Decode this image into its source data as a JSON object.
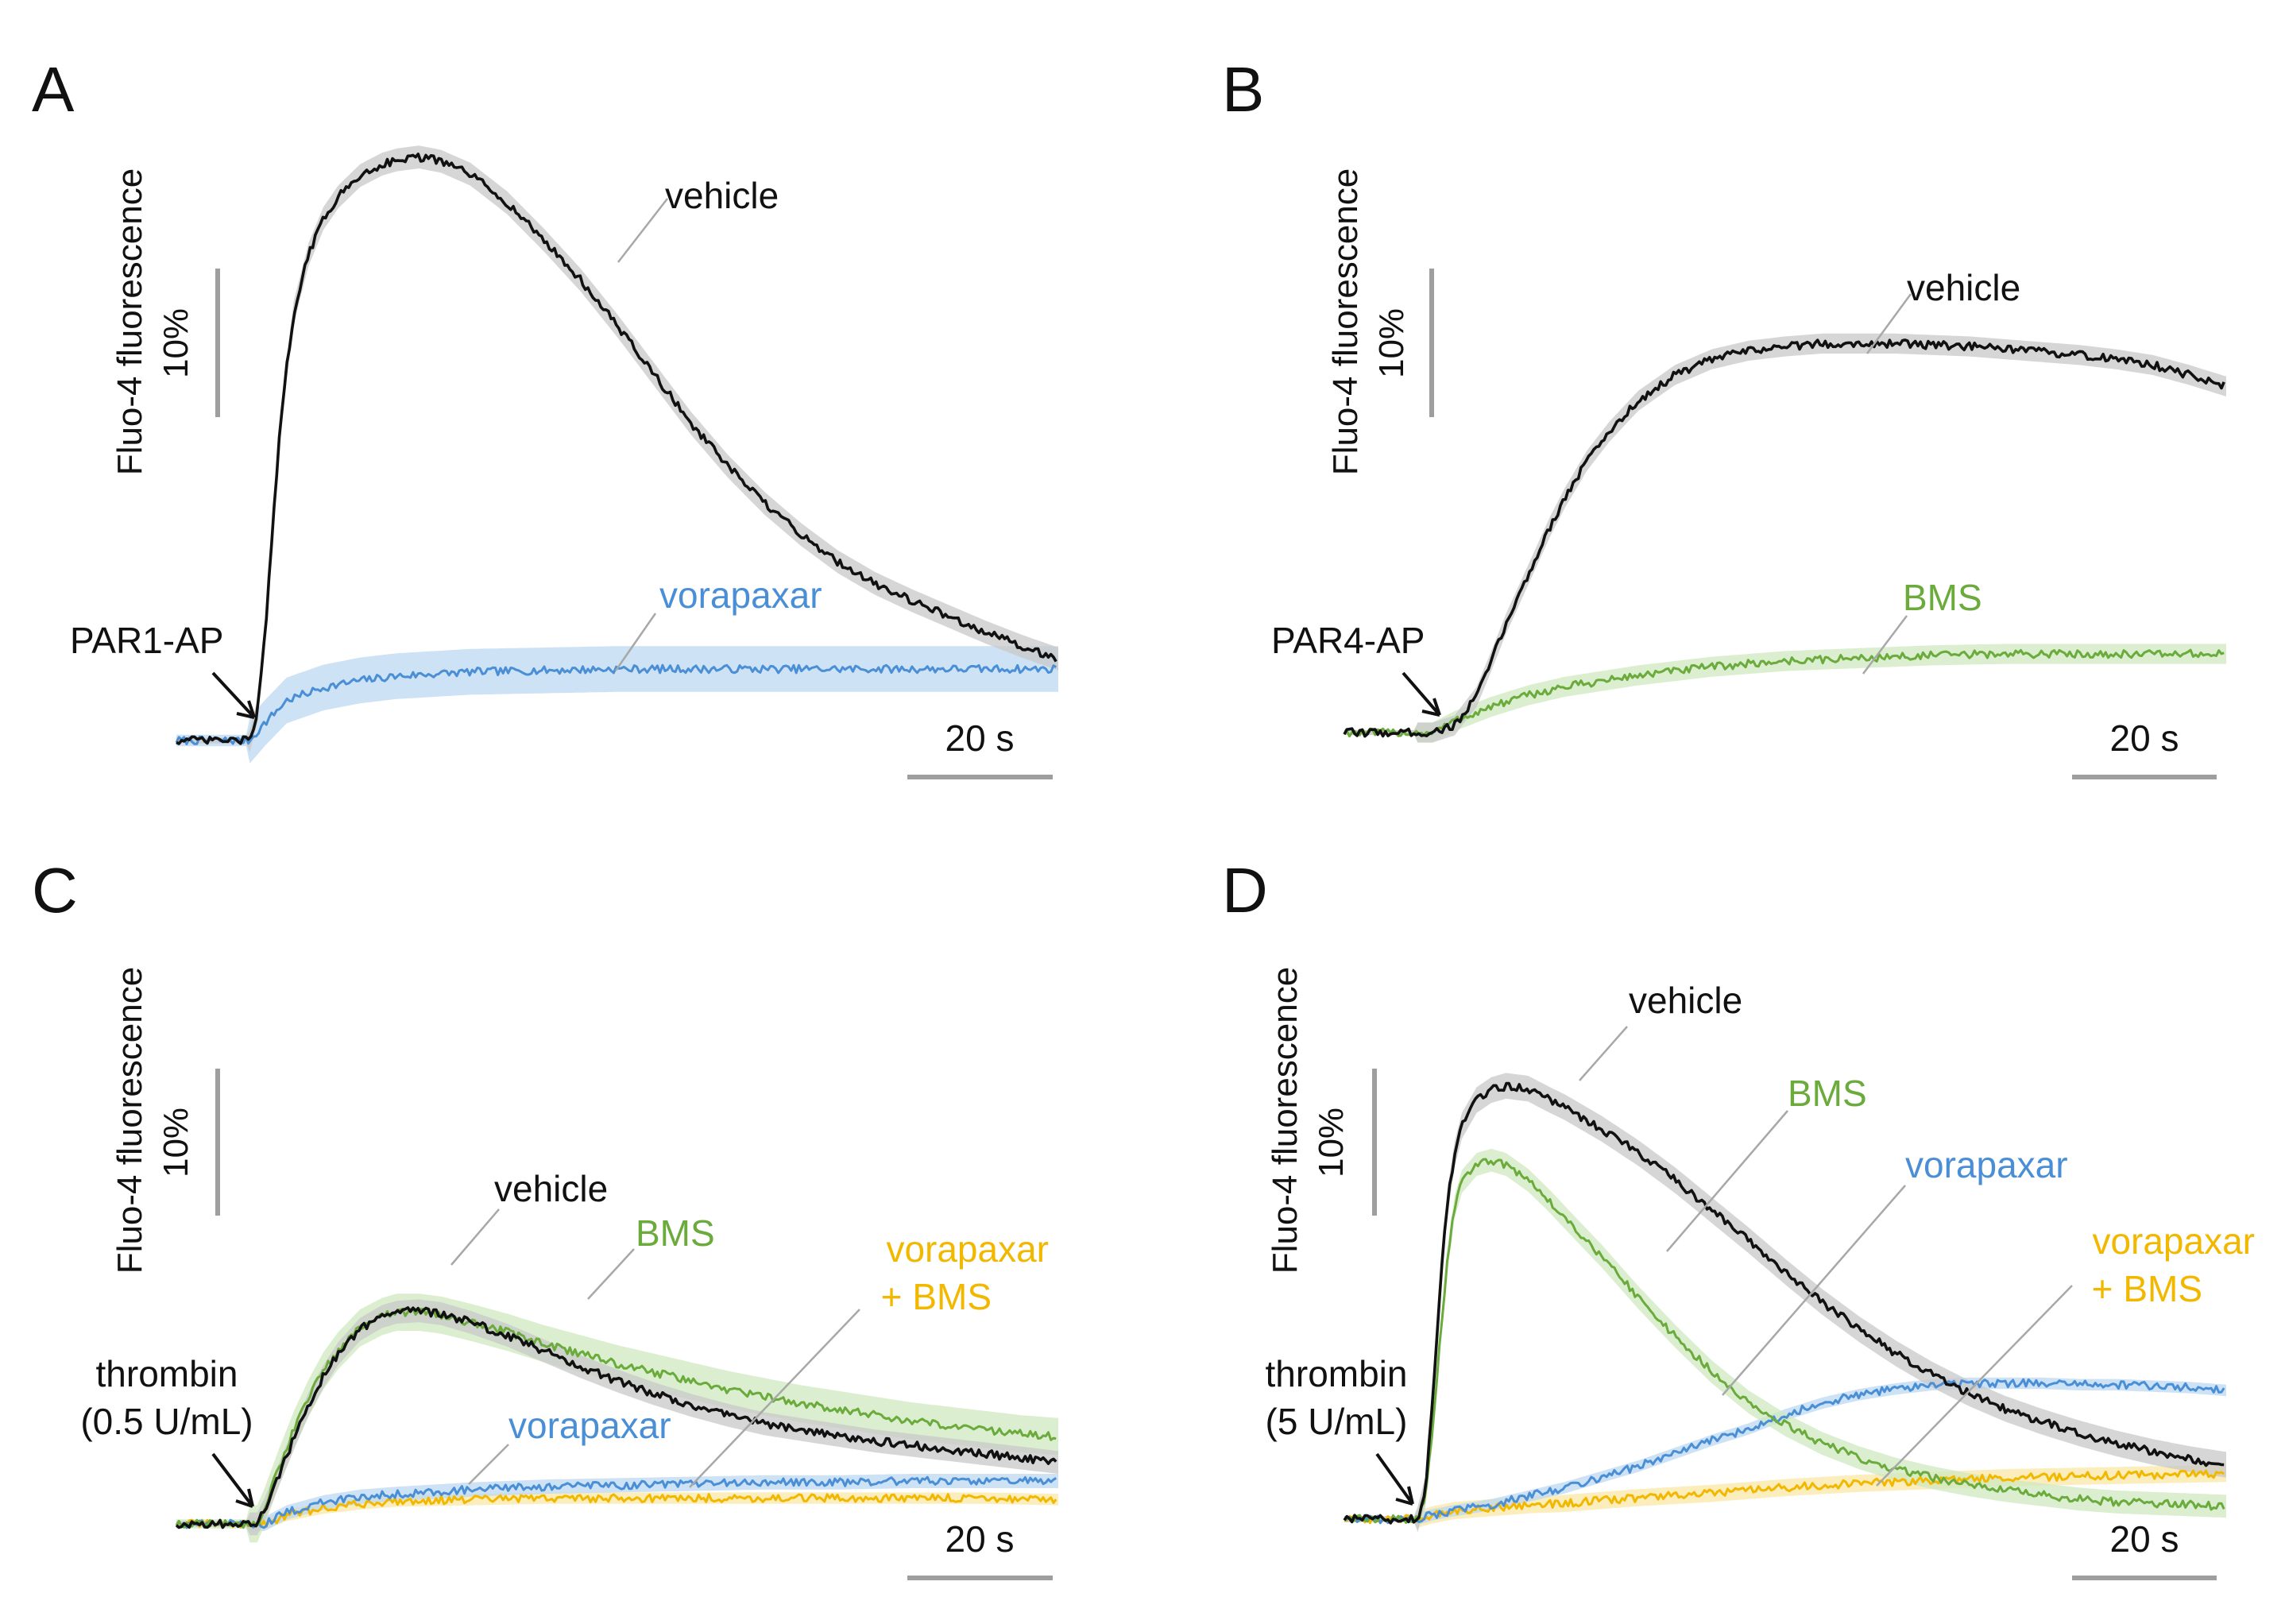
{
  "colors": {
    "vehicle": "#111111",
    "vehicle_band": "#c8c8c8",
    "vorapaxar": "#4a8fd6",
    "vorapaxar_band": "#bcd8f2",
    "BMS": "#6aab3c",
    "BMS_band": "#cfe8bf",
    "combo": "#f2b800",
    "combo_band": "#fbe7a6",
    "scalebar": "#9e9e9e"
  },
  "chart_data": [
    {
      "panel": "A",
      "type": "line",
      "ylabel": "Fluo-4 fluorescence",
      "y_scale_bar": "10%",
      "x_scale_bar": "20 s",
      "stimulus": [
        "PAR1-AP"
      ],
      "xlim": [
        0,
        120
      ],
      "ylim": [
        -1,
        42
      ],
      "series": [
        {
          "name": "vehicle",
          "color_key": "vehicle",
          "x": [
            0,
            10,
            11,
            12,
            13,
            14,
            15,
            16,
            18,
            20,
            22,
            25,
            28,
            30,
            33,
            36,
            40,
            45,
            50,
            55,
            60,
            65,
            70,
            75,
            80,
            85,
            90,
            95,
            100,
            105,
            110,
            115,
            120
          ],
          "y": [
            0,
            0,
            2,
            7,
            14,
            21,
            26,
            30,
            34,
            36.5,
            38,
            39.5,
            40.3,
            40.6,
            40.8,
            40.5,
            39.6,
            37.6,
            35,
            32.2,
            29,
            25.6,
            22.2,
            19.2,
            16.6,
            14.4,
            12.5,
            11,
            9.8,
            8.7,
            7.6,
            6.6,
            5.7
          ]
        },
        {
          "name": "vorapaxar",
          "color_key": "vorapaxar",
          "x": [
            0,
            10,
            12,
            15,
            20,
            25,
            30,
            40,
            50,
            60,
            70,
            80,
            90,
            100,
            110,
            120
          ],
          "y": [
            0,
            0,
            1.2,
            2.8,
            3.7,
            4.2,
            4.5,
            4.8,
            4.9,
            5,
            5,
            5,
            5,
            5,
            5,
            5
          ]
        }
      ]
    },
    {
      "panel": "B",
      "type": "line",
      "ylabel": "Fluo-4 fluorescence",
      "y_scale_bar": "10%",
      "x_scale_bar": "20 s",
      "stimulus": [
        "PAR4-AP"
      ],
      "xlim": [
        0,
        120
      ],
      "ylim": [
        -1,
        42
      ],
      "series": [
        {
          "name": "vehicle",
          "color_key": "vehicle",
          "x": [
            0,
            12,
            15,
            18,
            20,
            22,
            25,
            28,
            30,
            33,
            36,
            40,
            45,
            50,
            55,
            60,
            65,
            70,
            75,
            80,
            85,
            90,
            95,
            100,
            105,
            110,
            115,
            120
          ],
          "y": [
            0,
            0,
            0.5,
            2.5,
            5,
            7.6,
            11,
            14.4,
            16.4,
            19,
            21,
            23.2,
            25,
            26.1,
            26.7,
            27,
            27.2,
            27.2,
            27.2,
            27.1,
            27,
            26.8,
            26.6,
            26.4,
            26.1,
            25.7,
            25,
            24.2
          ]
        },
        {
          "name": "BMS",
          "color_key": "BMS",
          "x": [
            0,
            12,
            15,
            20,
            25,
            30,
            40,
            50,
            60,
            70,
            80,
            90,
            100,
            110,
            120
          ],
          "y": [
            0,
            0,
            0.8,
            1.8,
            2.6,
            3.2,
            4,
            4.6,
            5,
            5.2,
            5.4,
            5.5,
            5.5,
            5.5,
            5.5
          ]
        }
      ]
    },
    {
      "panel": "C",
      "type": "line",
      "ylabel": "Fluo-4 fluorescence",
      "y_scale_bar": "10%",
      "x_scale_bar": "20 s",
      "stimulus": [
        "thrombin",
        "(0.5 U/mL)"
      ],
      "xlim": [
        0,
        120
      ],
      "ylim": [
        -1,
        42
      ],
      "series": [
        {
          "name": "vehicle",
          "color_key": "vehicle",
          "x": [
            0,
            11,
            12,
            14,
            16,
            18,
            20,
            22,
            25,
            28,
            30,
            33,
            36,
            40,
            45,
            50,
            55,
            60,
            65,
            70,
            75,
            80,
            85,
            90,
            95,
            100,
            105,
            110,
            115,
            120
          ],
          "y": [
            0,
            0,
            1,
            3.5,
            6,
            8.4,
            10.3,
            11.9,
            13.6,
            14.5,
            14.8,
            14.9,
            14.7,
            14.1,
            13.2,
            12.1,
            11,
            10,
            9.1,
            8.3,
            7.6,
            7,
            6.6,
            6.2,
            5.8,
            5.5,
            5.2,
            4.9,
            4.6,
            4.3
          ]
        },
        {
          "name": "BMS",
          "color_key": "BMS",
          "x": [
            0,
            11,
            12,
            14,
            16,
            18,
            20,
            22,
            25,
            28,
            30,
            33,
            36,
            40,
            45,
            50,
            55,
            60,
            65,
            70,
            75,
            80,
            85,
            90,
            95,
            100,
            105,
            110,
            115,
            120
          ],
          "y": [
            0,
            0,
            1.2,
            4,
            6.6,
            8.8,
            10.7,
            12.1,
            13.7,
            14.5,
            14.8,
            14.8,
            14.6,
            14.1,
            13.4,
            12.6,
            11.9,
            11.2,
            10.6,
            10,
            9.4,
            8.9,
            8.4,
            8,
            7.6,
            7.2,
            6.9,
            6.6,
            6.3,
            6.1
          ]
        },
        {
          "name": "vorapaxar",
          "color_key": "vorapaxar",
          "x": [
            0,
            12,
            15,
            20,
            25,
            30,
            40,
            50,
            60,
            70,
            80,
            90,
            100,
            110,
            120
          ],
          "y": [
            0,
            0,
            0.8,
            1.5,
            1.9,
            2.1,
            2.4,
            2.6,
            2.7,
            2.8,
            2.9,
            2.9,
            3,
            3,
            3
          ]
        },
        {
          "name": "vorapaxar + BMS",
          "color_key": "combo",
          "x": [
            0,
            12,
            15,
            20,
            25,
            30,
            40,
            50,
            60,
            70,
            80,
            90,
            100,
            110,
            120
          ],
          "y": [
            0,
            0,
            0.6,
            1.1,
            1.4,
            1.6,
            1.7,
            1.8,
            1.8,
            1.8,
            1.8,
            1.8,
            1.8,
            1.8,
            1.7
          ]
        }
      ]
    },
    {
      "panel": "D",
      "type": "line",
      "ylabel": "Fluo-4 fluorescence",
      "y_scale_bar": "10%",
      "x_scale_bar": "20 s",
      "stimulus": [
        "thrombin",
        "(5 U/mL)"
      ],
      "xlim": [
        0,
        120
      ],
      "ylim": [
        -1,
        42
      ],
      "series": [
        {
          "name": "vehicle",
          "color_key": "vehicle",
          "x": [
            0,
            10,
            11,
            12,
            13,
            14,
            15,
            16,
            18,
            20,
            22,
            25,
            28,
            30,
            35,
            40,
            45,
            50,
            55,
            60,
            65,
            70,
            75,
            80,
            85,
            90,
            95,
            100,
            105,
            110,
            115,
            120
          ],
          "y": [
            0,
            0,
            2,
            8,
            16,
            22,
            25.5,
            27.5,
            29.3,
            30,
            30.3,
            30.1,
            29.3,
            28.8,
            27.3,
            25.6,
            23.7,
            21.6,
            19.5,
            17.3,
            15.2,
            13.3,
            11.6,
            10.1,
            8.8,
            7.7,
            6.8,
            6,
            5.3,
            4.7,
            4.2,
            3.8
          ]
        },
        {
          "name": "BMS",
          "color_key": "BMS",
          "x": [
            0,
            10,
            11,
            12,
            13,
            14,
            15,
            16,
            18,
            20,
            22,
            25,
            28,
            30,
            35,
            40,
            45,
            50,
            55,
            60,
            65,
            70,
            75,
            80,
            85,
            90,
            95,
            100,
            105,
            110,
            115,
            120
          ],
          "y": [
            0,
            0,
            1.5,
            6,
            12.5,
            18,
            21.8,
            23.6,
            24.8,
            25.1,
            24.8,
            23.7,
            22.2,
            21.1,
            18.4,
            15.5,
            12.8,
            10.3,
            8.2,
            6.6,
            5.3,
            4.3,
            3.5,
            2.9,
            2.4,
            2,
            1.7,
            1.4,
            1.2,
            1.1,
            1,
            0.9
          ]
        },
        {
          "name": "vorapaxar",
          "color_key": "vorapaxar",
          "x": [
            0,
            10,
            12,
            15,
            20,
            25,
            30,
            40,
            50,
            55,
            60,
            65,
            70,
            75,
            80,
            85,
            90,
            95,
            100,
            105,
            110,
            115,
            120
          ],
          "y": [
            0,
            0,
            0.3,
            0.6,
            1,
            1.6,
            2.2,
            3.7,
            5.5,
            6.3,
            7.3,
            8.1,
            8.7,
            9.1,
            9.4,
            9.5,
            9.5,
            9.5,
            9.4,
            9.4,
            9.3,
            9.2,
            9
          ]
        },
        {
          "name": "vorapaxar + BMS",
          "color_key": "combo",
          "x": [
            0,
            10,
            12,
            15,
            20,
            25,
            30,
            40,
            50,
            60,
            70,
            80,
            90,
            100,
            110,
            120
          ],
          "y": [
            0,
            0,
            0.3,
            0.6,
            0.8,
            1,
            1.1,
            1.5,
            1.8,
            2.2,
            2.5,
            2.7,
            2.9,
            3,
            3.1,
            3.2
          ]
        }
      ]
    }
  ],
  "labels": {
    "A": {
      "letter": "A",
      "vehicle": "vehicle",
      "vorapaxar": "vorapaxar"
    },
    "B": {
      "letter": "B",
      "vehicle": "vehicle",
      "BMS": "BMS"
    },
    "C": {
      "letter": "C",
      "vehicle": "vehicle",
      "BMS": "BMS",
      "vorapaxar": "vorapaxar",
      "combo_line1": "vorapaxar",
      "combo_line2": "+ BMS"
    },
    "D": {
      "letter": "D",
      "vehicle": "vehicle",
      "BMS": "BMS",
      "vorapaxar": "vorapaxar",
      "combo_line1": "vorapaxar",
      "combo_line2": "+ BMS"
    }
  }
}
